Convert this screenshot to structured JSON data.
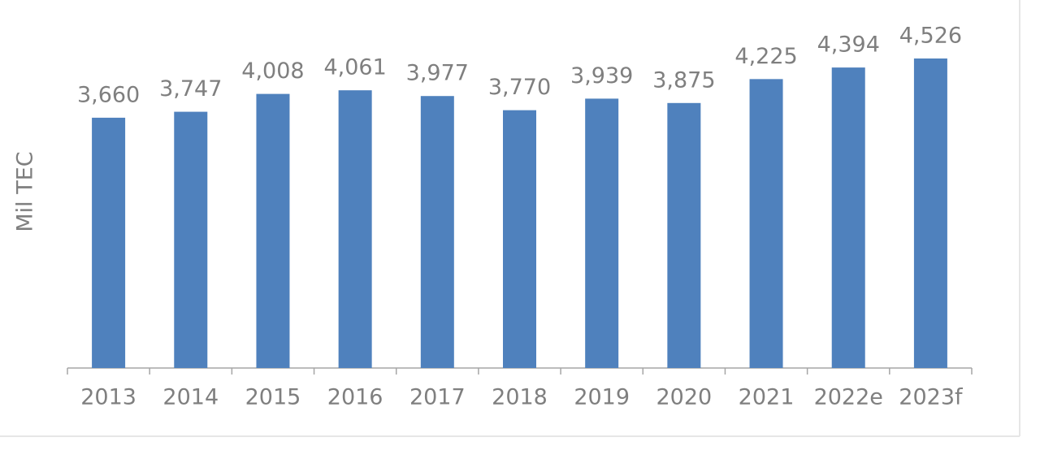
{
  "chart_data": {
    "type": "bar",
    "y_label": "Mil TEC",
    "categories": [
      "2013",
      "2014",
      "2015",
      "2016",
      "2017",
      "2018",
      "2019",
      "2020",
      "2021",
      "2022e",
      "2023f"
    ],
    "values": [
      3660,
      3747,
      4008,
      4061,
      3977,
      3770,
      3939,
      3875,
      4225,
      4394,
      4526
    ],
    "value_labels": [
      "3,660",
      "3,747",
      "4,008",
      "4,061",
      "3,977",
      "3,770",
      "3,939",
      "3,875",
      "4,225",
      "4,394",
      "4,526"
    ],
    "color": "#4f81bd"
  }
}
